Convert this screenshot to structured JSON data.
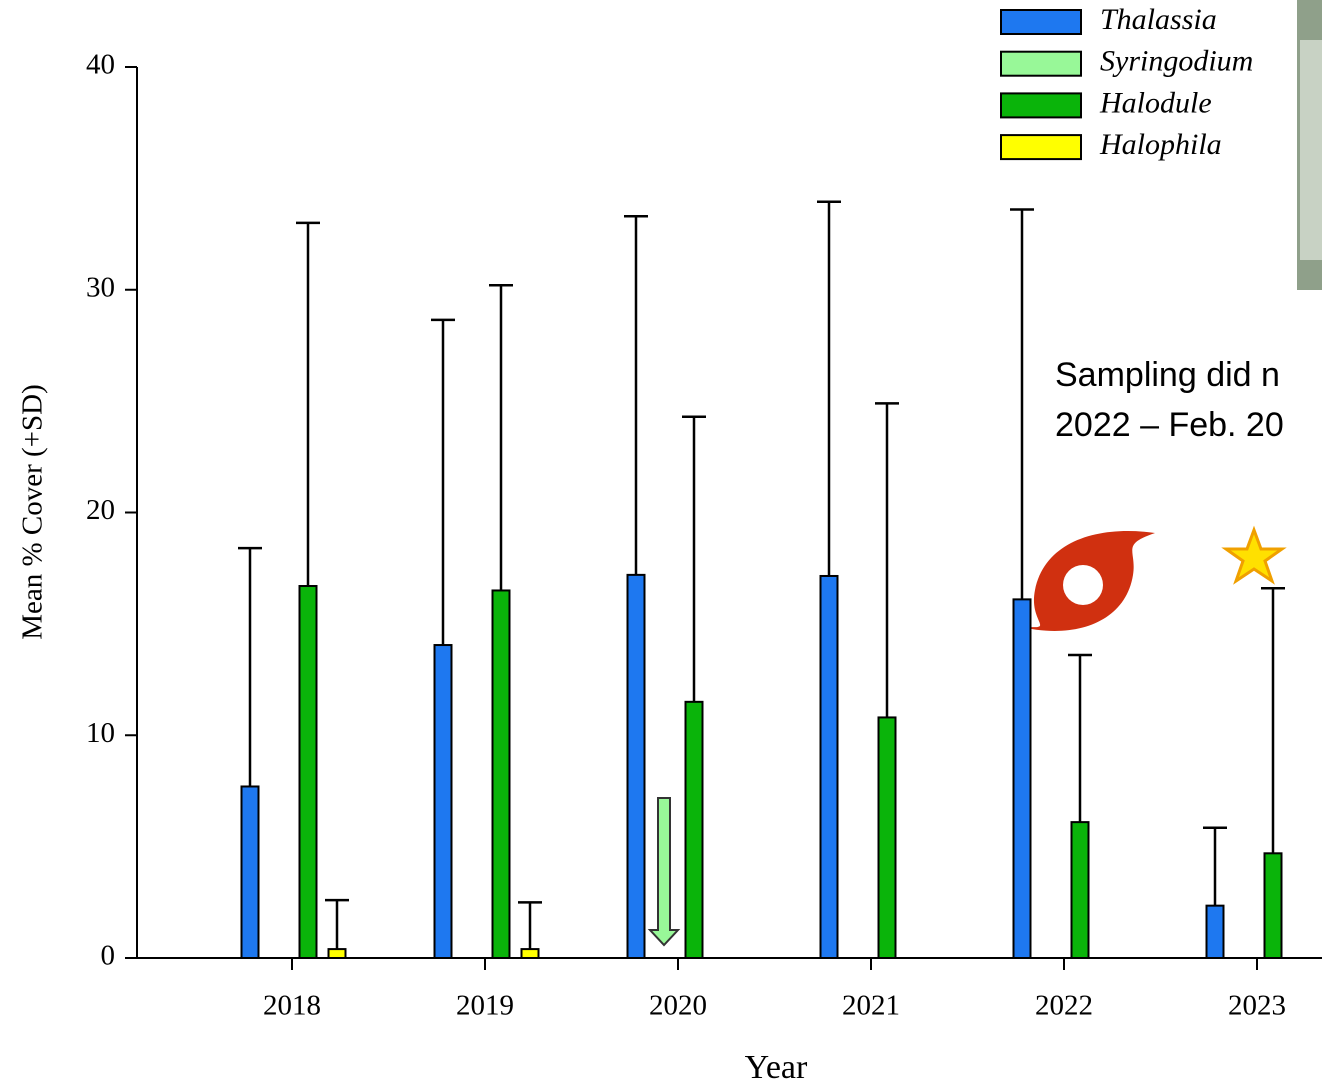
{
  "chart_data": {
    "type": "bar",
    "ylabel": "Mean % Cover (+SD)",
    "xlabel": "Year",
    "annotation": [
      "Sampling did n",
      "2022 – Feb. 20"
    ],
    "categories": [
      "2018",
      "2019",
      "2020",
      "2021",
      "2022",
      "2023"
    ],
    "series": [
      {
        "name": "Thalassia",
        "color": "#1e78f0",
        "values": [
          7.7,
          14.05,
          17.2,
          17.15,
          16.1,
          2.35
        ],
        "errors": [
          10.7,
          14.6,
          16.1,
          16.8,
          17.5,
          3.5
        ]
      },
      {
        "name": "Syringodium",
        "color": "#98f898",
        "values": [
          0,
          0,
          0,
          0,
          0,
          0
        ],
        "errors": [
          null,
          null,
          null,
          null,
          null,
          null
        ]
      },
      {
        "name": "Halodule",
        "color": "#0ab40a",
        "values": [
          16.7,
          16.5,
          11.5,
          10.8,
          6.1,
          4.7
        ],
        "errors": [
          16.3,
          13.7,
          12.8,
          14.1,
          7.5,
          11.9
        ]
      },
      {
        "name": "Halophila",
        "color": "#ffff00",
        "values": [
          0.4,
          0.4,
          0,
          0,
          0,
          0
        ],
        "errors": [
          2.2,
          2.1,
          null,
          null,
          null,
          null
        ]
      }
    ],
    "ylim": [
      0,
      40
    ],
    "yticks": [
      0,
      10,
      20,
      30,
      40
    ]
  }
}
